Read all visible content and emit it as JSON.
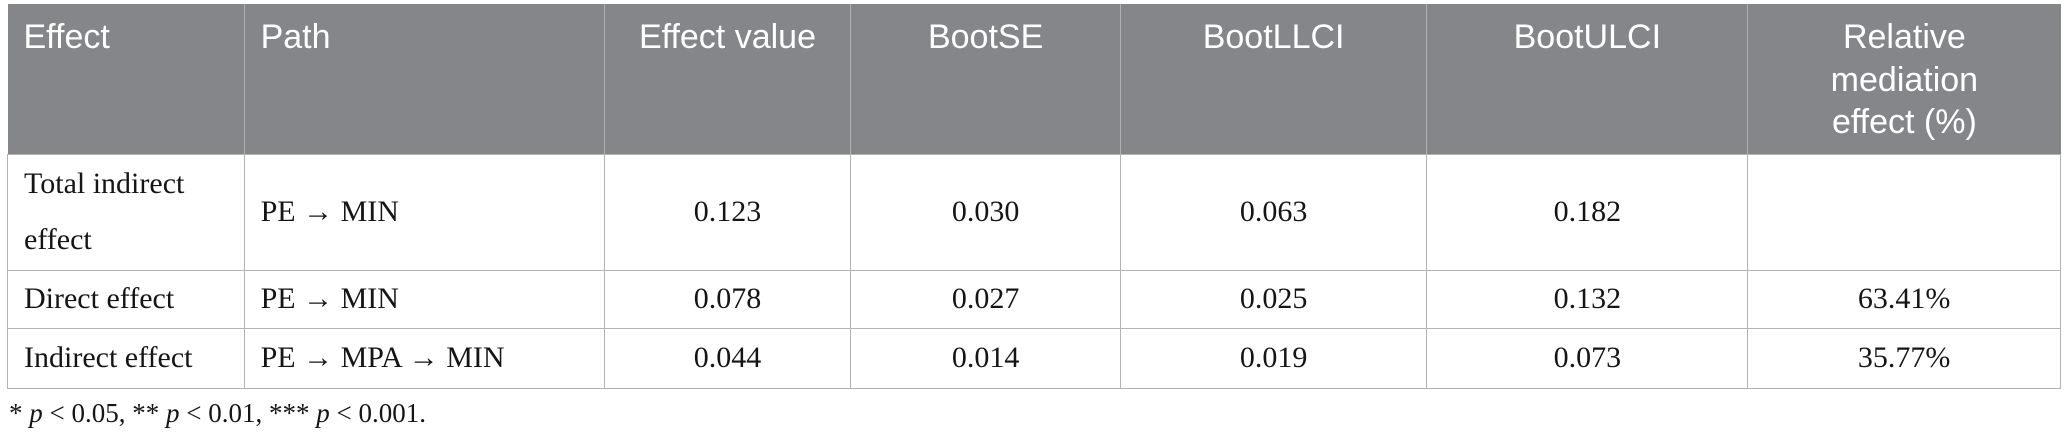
{
  "table": {
    "columns": [
      {
        "label": "Effect",
        "align": "left"
      },
      {
        "label": "Path",
        "align": "left"
      },
      {
        "label": "Effect value",
        "align": "center"
      },
      {
        "label": "BootSE",
        "align": "center"
      },
      {
        "label": "BootLLCI",
        "align": "center"
      },
      {
        "label": "BootULCI",
        "align": "center"
      },
      {
        "label": "Relative\nmediation\neffect (%)",
        "align": "center"
      }
    ],
    "rows": [
      [
        "Total indirect effect",
        "PE → MIN",
        "0.123",
        "0.030",
        "0.063",
        "0.182",
        ""
      ],
      [
        "Direct effect",
        "PE → MIN",
        "0.078",
        "0.027",
        "0.025",
        "0.132",
        "63.41%"
      ],
      [
        "Indirect effect",
        "PE → MPA → MIN",
        "0.044",
        "0.014",
        "0.019",
        "0.073",
        "35.77%"
      ]
    ],
    "colors": {
      "header_bg": "#848689",
      "header_text": "#ffffff",
      "body_text": "#151515",
      "border": "#b3b3b3"
    }
  },
  "footnote": {
    "segments": [
      {
        "text": "* ",
        "italic": false
      },
      {
        "text": "p",
        "italic": true
      },
      {
        "text": " < 0.05, ** ",
        "italic": false
      },
      {
        "text": "p",
        "italic": true
      },
      {
        "text": " < 0.01, *** ",
        "italic": false
      },
      {
        "text": "p",
        "italic": true
      },
      {
        "text": " < 0.001.",
        "italic": false
      }
    ]
  }
}
